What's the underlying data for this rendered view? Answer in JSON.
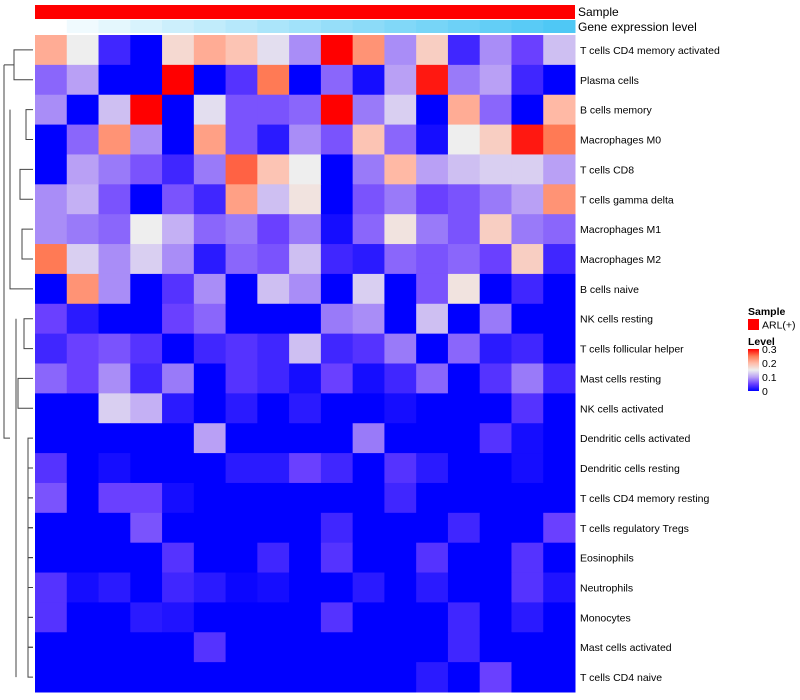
{
  "chart_data": {
    "type": "heatmap",
    "title": "",
    "annotations": [
      {
        "name": "Sample",
        "color": "#FF0000"
      },
      {
        "name": "Gene expression level",
        "color_low": "#FFFFFF",
        "color_high": "#4FC8F5"
      }
    ],
    "rows": [
      "T cells CD4 memory activated",
      "Plasma cells",
      "B cells memory",
      "Macrophages M0",
      "T cells CD8",
      "T cells gamma delta",
      "Macrophages M1",
      "Macrophages M2",
      "B cells naive",
      "NK cells resting",
      "T cells follicular helper",
      "Mast cells resting",
      "NK cells activated",
      "Dendritic cells activated",
      "Dendritic cells resting",
      "T cells CD4 memory resting",
      "T cells regulatory  Tregs",
      "Eosinophils",
      "Neutrophils",
      "Monocytes",
      "Mast cells activated",
      "T cells CD4 naive"
    ],
    "n_columns": 17,
    "values": [
      [
        0.21,
        0.15,
        0.03,
        0,
        0.17,
        0.21,
        0.19,
        0.14,
        0.09,
        0.3,
        0.23,
        0.09,
        0.18,
        0.03,
        0.09,
        0.05,
        0.12
      ],
      [
        0.07,
        0.1,
        0,
        0,
        0.3,
        0,
        0.04,
        0.25,
        0,
        0.07,
        0.01,
        0.1,
        0.29,
        0.08,
        0.1,
        0.03,
        0
      ],
      [
        0.09,
        0,
        0.12,
        0.3,
        0,
        0.14,
        0.06,
        0.06,
        0.07,
        0.3,
        0.08,
        0.13,
        0,
        0.21,
        0.07,
        0,
        0.2
      ],
      [
        0,
        0.07,
        0.23,
        0.09,
        0,
        0.22,
        0.06,
        0.02,
        0.09,
        0.06,
        0.19,
        0.07,
        0.01,
        0.15,
        0.18,
        0.29,
        0.25
      ],
      [
        0,
        0.1,
        0.08,
        0.06,
        0.03,
        0.08,
        0.26,
        0.19,
        0.15,
        0,
        0.08,
        0.2,
        0.1,
        0.12,
        0.13,
        0.13,
        0.1
      ],
      [
        0.09,
        0.11,
        0.06,
        0,
        0.06,
        0.03,
        0.22,
        0.12,
        0.16,
        0,
        0.06,
        0.08,
        0.05,
        0.06,
        0.08,
        0.1,
        0.23
      ],
      [
        0.09,
        0.08,
        0.07,
        0.15,
        0.11,
        0.07,
        0.08,
        0.05,
        0.08,
        0.01,
        0.07,
        0.16,
        0.08,
        0.06,
        0.18,
        0.08,
        0.07
      ],
      [
        0.25,
        0.13,
        0.09,
        0.13,
        0.09,
        0.02,
        0.07,
        0.06,
        0.12,
        0.03,
        0.02,
        0.07,
        0.06,
        0.07,
        0.05,
        0.18,
        0.03
      ],
      [
        0,
        0.23,
        0.09,
        0,
        0.04,
        0.09,
        0,
        0.12,
        0.09,
        0,
        0.13,
        0,
        0.06,
        0.16,
        0,
        0.03,
        0
      ],
      [
        0.05,
        0.02,
        0,
        0,
        0.05,
        0.07,
        0,
        0,
        0,
        0.08,
        0.09,
        0,
        0.12,
        0,
        0.08,
        0,
        0
      ],
      [
        0.03,
        0.05,
        0.06,
        0.04,
        0,
        0.03,
        0.04,
        0.03,
        0.12,
        0.03,
        0.04,
        0.08,
        0,
        0.07,
        0.02,
        0.03,
        0
      ],
      [
        0.07,
        0.05,
        0.09,
        0.03,
        0.08,
        0,
        0.04,
        0.03,
        0.01,
        0.05,
        0.01,
        0.03,
        0.07,
        0,
        0.04,
        0.08,
        0.03
      ],
      [
        0,
        0,
        0.13,
        0.11,
        0.02,
        0,
        0.02,
        0,
        0.02,
        0,
        0,
        0.01,
        0,
        0,
        0,
        0.04,
        0
      ],
      [
        0,
        0,
        0,
        0,
        0,
        0.1,
        0,
        0,
        0,
        0,
        0.08,
        0,
        0,
        0,
        0.04,
        0.01,
        0
      ],
      [
        0.04,
        0,
        0.01,
        0,
        0,
        0,
        0.02,
        0.02,
        0.05,
        0.03,
        0,
        0.04,
        0.02,
        0,
        0,
        0.01,
        0
      ],
      [
        0.06,
        0,
        0.05,
        0.05,
        0.01,
        0,
        0,
        0,
        0,
        0,
        0,
        0.03,
        0,
        0,
        0,
        0,
        0
      ],
      [
        0,
        0,
        0,
        0.06,
        0,
        0,
        0,
        0,
        0,
        0.03,
        0,
        0,
        0,
        0.03,
        0,
        0,
        0.05
      ],
      [
        0,
        0,
        0,
        0,
        0.04,
        0,
        0,
        0.03,
        0,
        0.04,
        0,
        0,
        0.04,
        0,
        0,
        0.04,
        0
      ],
      [
        0.04,
        0.01,
        0.02,
        0,
        0.03,
        0.02,
        0.005,
        0.01,
        0,
        0,
        0.02,
        0,
        0.02,
        0,
        0,
        0.04,
        0.015
      ],
      [
        0.04,
        0,
        0,
        0.02,
        0.015,
        0,
        0,
        0,
        0,
        0.04,
        0,
        0,
        0,
        0.03,
        0,
        0.02,
        0
      ],
      [
        0,
        0,
        0,
        0,
        0,
        0.04,
        0,
        0,
        0,
        0,
        0,
        0,
        0,
        0.03,
        0,
        0,
        0
      ],
      [
        0,
        0,
        0,
        0,
        0,
        0,
        0,
        0,
        0,
        0,
        0,
        0,
        0.02,
        0,
        0.05,
        0,
        0
      ]
    ],
    "color_scale": {
      "low": "#0000FF",
      "mid": "#EEEEEE",
      "high": "#FF0000",
      "range": [
        0,
        0.3
      ]
    },
    "legend": {
      "placement": "right",
      "sample_title": "Sample",
      "sample_items": [
        {
          "label": "ARL(+)",
          "color": "#FF0000"
        }
      ],
      "level_title": "Level",
      "level_ticks": [
        "0.3",
        "0.2",
        "0.1",
        "0"
      ]
    }
  }
}
